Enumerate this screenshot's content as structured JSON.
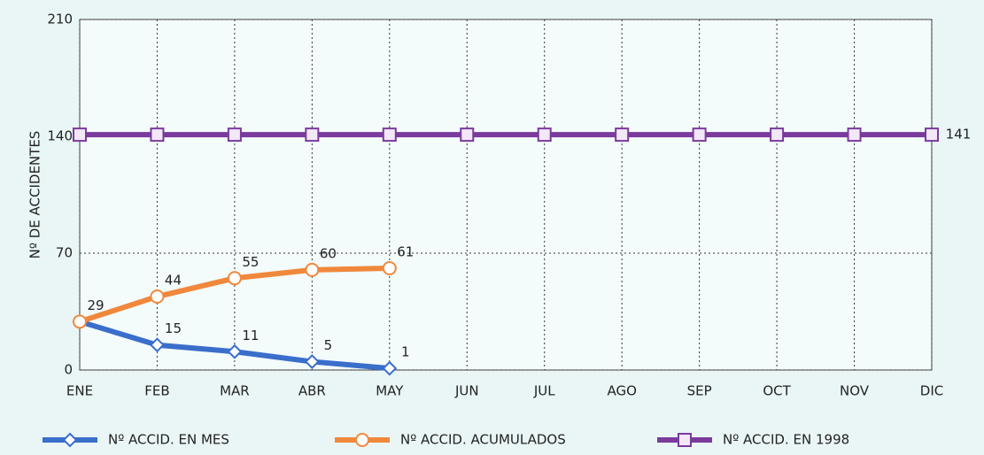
{
  "chart_data": {
    "type": "line",
    "y_label": "Nº DE ACCIDENTES",
    "categories": [
      "ENE",
      "FEB",
      "MAR",
      "ABR",
      "MAY",
      "JUN",
      "JUL",
      "AGO",
      "SEP",
      "OCT",
      "NOV",
      "DIC"
    ],
    "series": [
      {
        "name": "Nº ACCID. EN MES",
        "color": "#3a6ecb",
        "marker": "diamond",
        "values": [
          29,
          15,
          11,
          5,
          1,
          null,
          null,
          null,
          null,
          null,
          null,
          null
        ],
        "value_labels": [
          null,
          "15",
          "11",
          "5",
          "1",
          null,
          null,
          null,
          null,
          null,
          null,
          null
        ]
      },
      {
        "name": "Nº ACCID. ACUMULADOS",
        "color": "#f0883c",
        "marker": "circle",
        "values": [
          29,
          44,
          55,
          60,
          61,
          null,
          null,
          null,
          null,
          null,
          null,
          null
        ],
        "value_labels": [
          "29",
          "44",
          "55",
          "60",
          "61",
          null,
          null,
          null,
          null,
          null,
          null,
          null
        ]
      },
      {
        "name": "Nº ACCID. EN 1998",
        "color": "#7a3b9c",
        "marker": "square",
        "values": [
          141,
          141,
          141,
          141,
          141,
          141,
          141,
          141,
          141,
          141,
          141,
          141
        ],
        "value_labels": [
          null,
          null,
          null,
          null,
          null,
          null,
          null,
          null,
          null,
          null,
          null,
          "141"
        ]
      }
    ],
    "ylim": [
      0,
      210
    ],
    "yticks": [
      0,
      70,
      140,
      210
    ],
    "grid": true,
    "legend": "bottom"
  }
}
